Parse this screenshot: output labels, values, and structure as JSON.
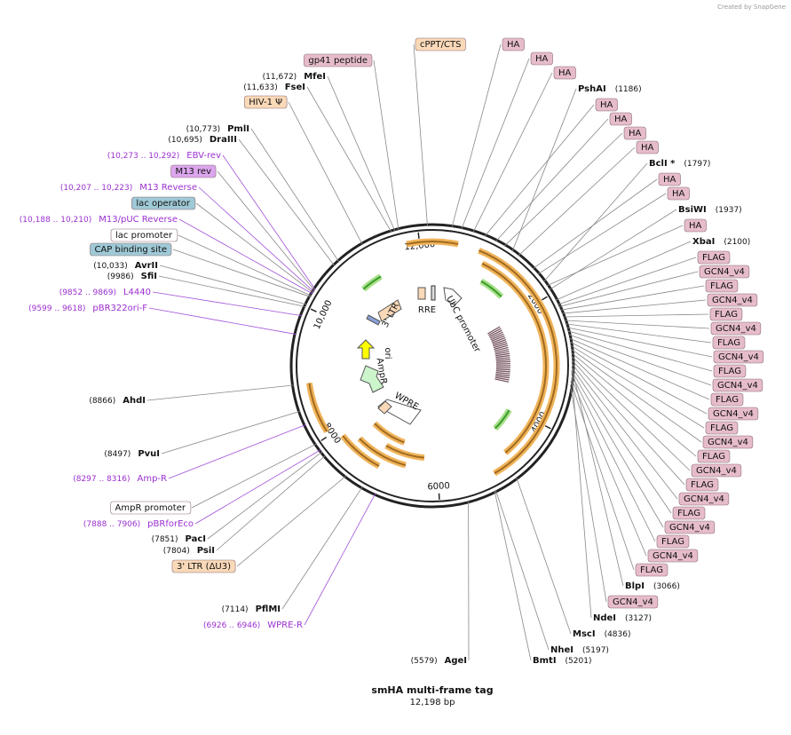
{
  "credit": "Created by SnapGene",
  "title": "smHA multi-frame tag",
  "subtitle": "12,198 bp",
  "ring_ticks": [
    "2000",
    "4000",
    "6000",
    "8000",
    "10,000",
    "12,000"
  ],
  "features": [
    "3' LTR",
    "RRE",
    "UbC promoter",
    "ori",
    "AmpR",
    "WPRE"
  ],
  "labels": [
    {
      "name": "cPPT/CTS",
      "fill": "#fad9b8"
    },
    {
      "name": "HA",
      "fill": "#e6bccb"
    },
    {
      "name": "HA",
      "fill": "#e6bccb"
    },
    {
      "name": "HA",
      "fill": "#e6bccb"
    },
    {
      "name": "PshAI",
      "position": "(1186)"
    },
    {
      "name": "HA",
      "fill": "#e6bccb"
    },
    {
      "name": "HA",
      "fill": "#e6bccb"
    },
    {
      "name": "HA",
      "fill": "#e6bccb"
    },
    {
      "name": "HA",
      "fill": "#e6bccb"
    },
    {
      "name": "BclI *",
      "position": "(1797)"
    },
    {
      "name": "HA",
      "fill": "#e6bccb"
    },
    {
      "name": "HA",
      "fill": "#e6bccb"
    },
    {
      "name": "BsiWI",
      "position": "(1937)"
    },
    {
      "name": "HA",
      "fill": "#e6bccb"
    },
    {
      "name": "XbaI",
      "position": "(2100)"
    },
    {
      "name": "FLAG",
      "fill": "#e6bccb"
    },
    {
      "name": "GCN4_v4",
      "fill": "#e6bccb"
    },
    {
      "name": "FLAG",
      "fill": "#e6bccb"
    },
    {
      "name": "GCN4_v4",
      "fill": "#e6bccb"
    },
    {
      "name": "FLAG",
      "fill": "#e6bccb"
    },
    {
      "name": "GCN4_v4",
      "fill": "#e6bccb"
    },
    {
      "name": "FLAG",
      "fill": "#e6bccb"
    },
    {
      "name": "GCN4_v4",
      "fill": "#e6bccb"
    },
    {
      "name": "FLAG",
      "fill": "#e6bccb"
    },
    {
      "name": "GCN4_v4",
      "fill": "#e6bccb"
    },
    {
      "name": "FLAG",
      "fill": "#e6bccb"
    },
    {
      "name": "GCN4_v4",
      "fill": "#e6bccb"
    },
    {
      "name": "FLAG",
      "fill": "#e6bccb"
    },
    {
      "name": "GCN4_v4",
      "fill": "#e6bccb"
    },
    {
      "name": "FLAG",
      "fill": "#e6bccb"
    },
    {
      "name": "GCN4_v4",
      "fill": "#e6bccb"
    },
    {
      "name": "FLAG",
      "fill": "#e6bccb"
    },
    {
      "name": "GCN4_v4",
      "fill": "#e6bccb"
    },
    {
      "name": "FLAG",
      "fill": "#e6bccb"
    },
    {
      "name": "GCN4_v4",
      "fill": "#e6bccb"
    },
    {
      "name": "FLAG",
      "fill": "#e6bccb"
    },
    {
      "name": "GCN4_v4",
      "fill": "#e6bccb"
    },
    {
      "name": "FLAG",
      "fill": "#e6bccb"
    },
    {
      "name": "BlpI",
      "position": "(3066)"
    },
    {
      "name": "GCN4_v4",
      "fill": "#e6bccb"
    },
    {
      "name": "NdeI",
      "position": "(3127)"
    },
    {
      "name": "MscI",
      "position": "(4836)"
    },
    {
      "name": "NheI",
      "position": "(5197)"
    },
    {
      "name": "BmtI",
      "position": "(5201)"
    },
    {
      "name": "AgeI",
      "position": "(5579)"
    },
    {
      "name": "WPRE-R",
      "position": "(6926 .. 6946)",
      "color": "#9b30d0"
    },
    {
      "name": "PflMI",
      "position": "(7114)"
    },
    {
      "name": "3' LTR (ΔU3)",
      "fill": "#fad9b8"
    },
    {
      "name": "PsiI",
      "position": "(7804)"
    },
    {
      "name": "PacI",
      "position": "(7851)"
    },
    {
      "name": "pBRforEco",
      "position": "(7888 .. 7906)",
      "color": "#9b30d0"
    },
    {
      "name": "AmpR promoter",
      "fill": "#ffffff"
    },
    {
      "name": "Amp-R",
      "position": "(8297 .. 8316)",
      "color": "#9b30d0"
    },
    {
      "name": "PvuI",
      "position": "(8497)"
    },
    {
      "name": "AhdI",
      "position": "(8866)"
    },
    {
      "name": "pBR322ori-F",
      "position": "(9599 .. 9618)",
      "color": "#9b30d0"
    },
    {
      "name": "L4440",
      "position": "(9852 .. 9869)",
      "color": "#9b30d0"
    },
    {
      "name": "SfiI",
      "position": "(9986)"
    },
    {
      "name": "AvrII",
      "position": "(10,033)"
    },
    {
      "name": "CAP binding site",
      "fill": "#9fc9d6"
    },
    {
      "name": "lac promoter",
      "fill": "#ffffff"
    },
    {
      "name": "M13/pUC Reverse",
      "position": "(10,188 .. 10,210)",
      "color": "#9b30d0"
    },
    {
      "name": "lac operator",
      "fill": "#9fc9d6"
    },
    {
      "name": "M13 Reverse",
      "position": "(10,207 .. 10,223)",
      "color": "#9b30d0"
    },
    {
      "name": "M13 rev",
      "fill": "#dba6ee"
    },
    {
      "name": "EBV-rev",
      "position": "(10,273 .. 10,292)",
      "color": "#9b30d0"
    },
    {
      "name": "DraIII",
      "position": "(10,695)"
    },
    {
      "name": "PmlI",
      "position": "(10,773)"
    },
    {
      "name": "HIV-1 Ψ",
      "fill": "#fad9b8"
    },
    {
      "name": "FseI",
      "position": "(11,633)"
    },
    {
      "name": "MfeI",
      "position": "(11,672)"
    },
    {
      "name": "gp41 peptide",
      "fill": "#e6bccb"
    }
  ]
}
